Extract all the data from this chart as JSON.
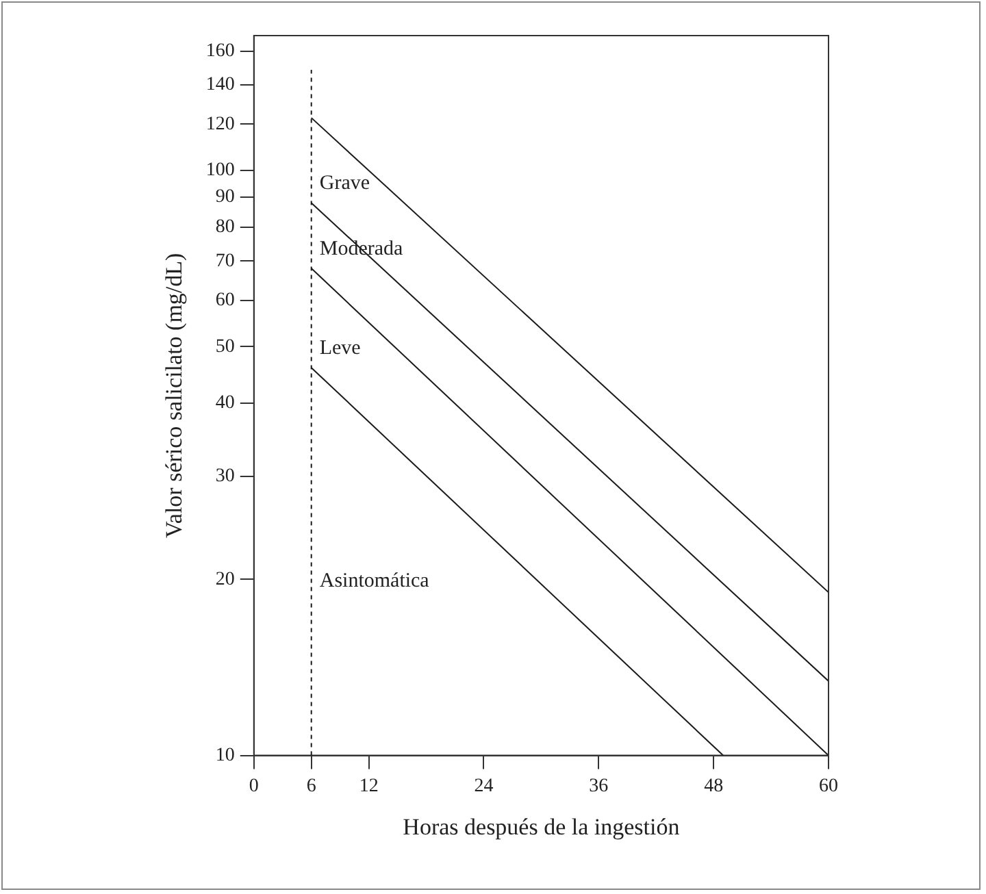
{
  "chart_data": {
    "type": "line",
    "xlabel": "Horas después de la ingestión",
    "ylabel": "Valor sérico salicilato (mg/dL)",
    "log": "y",
    "grid": false,
    "legend": false,
    "marker": "none",
    "xlim": [
      0,
      60
    ],
    "xticks": [
      0,
      6,
      12,
      24,
      36,
      48,
      60
    ],
    "ylim": [
      10,
      170
    ],
    "yticks": [
      10,
      20,
      30,
      40,
      50,
      60,
      70,
      80,
      90,
      100,
      120,
      140,
      160
    ],
    "series": [
      {
        "color": "#1a1a1a",
        "x": [
          6,
          60
        ],
        "values": [
          123,
          19
        ]
      },
      {
        "color": "#1a1a1a",
        "x": [
          6,
          60
        ],
        "values": [
          88,
          13.4
        ]
      },
      {
        "color": "#1a1a1a",
        "x": [
          6,
          60
        ],
        "values": [
          68,
          10
        ]
      },
      {
        "color": "#1a1a1a",
        "x": [
          6,
          49
        ],
        "values": [
          46,
          10
        ]
      }
    ],
    "ref_lines": [
      {
        "axis": "x",
        "value": 6,
        "color": "#1a1a1a",
        "line_style": "dashed"
      }
    ],
    "annotations": [
      "Grave",
      "Moderada",
      "Leve",
      "Asintomática"
    ]
  }
}
